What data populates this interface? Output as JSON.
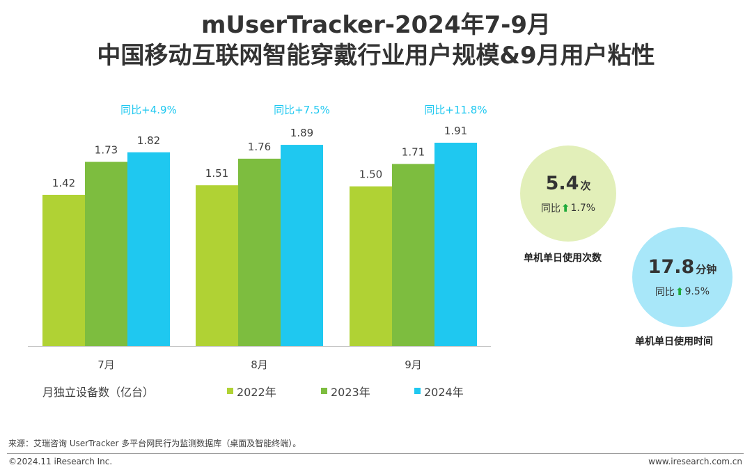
{
  "title": {
    "line1": "mUserTracker-2024年7-9月",
    "line2": "中国移动互联网智能穿戴行业用户规模&9月用户粘性"
  },
  "chart_data": {
    "type": "bar",
    "categories": [
      "7月",
      "8月",
      "9月"
    ],
    "series": [
      {
        "name": "2022年",
        "values": [
          1.42,
          1.51,
          1.5
        ],
        "color": "#b0d234"
      },
      {
        "name": "2023年",
        "values": [
          1.73,
          1.76,
          1.71
        ],
        "color": "#7dbd3f"
      },
      {
        "name": "2024年",
        "values": [
          1.82,
          1.89,
          1.91
        ],
        "color": "#1fc8f0"
      }
    ],
    "yoy_labels": [
      "同比+4.9%",
      "同比+7.5%",
      "同比+11.8%"
    ],
    "yoy_color": "#1fc8f0",
    "ylabel": "月独立设备数（亿台）",
    "ylim": [
      0,
      2.0
    ],
    "legend_position": "bottom",
    "grid": false
  },
  "metrics": [
    {
      "value": "5.4",
      "unit": "次",
      "yoy_prefix": "同比",
      "yoy_value": "1.7%",
      "label": "单机单日使用次数",
      "color": "#e2efb9"
    },
    {
      "value": "17.8",
      "unit": "分钟",
      "yoy_prefix": "同比",
      "yoy_value": "9.5%",
      "label": "单机单日使用时间",
      "color": "#a8e7f9"
    }
  ],
  "icons": {
    "arrow": "arrow-up-icon"
  },
  "footer": {
    "source": "来源：艾瑞咨询 UserTracker 多平台网民行为监测数据库（桌面及智能终端）。",
    "copyright": "©2024.11 iResearch Inc.",
    "website": "www.iresearch.com.cn"
  }
}
